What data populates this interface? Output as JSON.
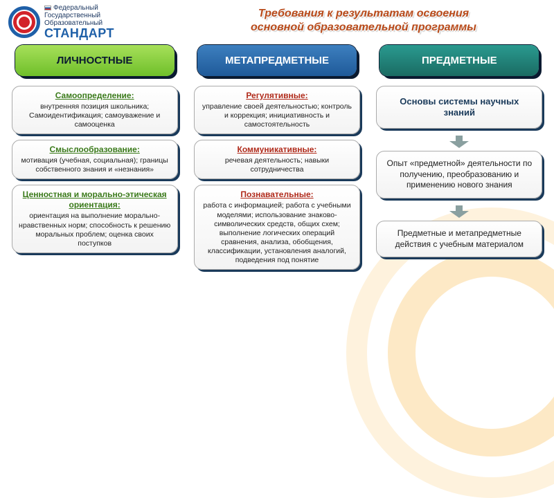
{
  "header": {
    "logo_words": [
      "Федеральный",
      "Государственный",
      "Образовательный"
    ],
    "logo_brand": "СТАНДАРТ",
    "title_line1": "Требования к результатам освоения",
    "title_line2": "основной образовательной программы"
  },
  "columns": [
    {
      "header": "ЛИЧНОСТНЫЕ",
      "header_style": "green",
      "title_color": "green",
      "cards": [
        {
          "title": "Самоопределение:",
          "body": "внутренняя позиция школьника; Самоидентификация; самоуважение и самооценка"
        },
        {
          "title": "Смыслообразование:",
          "body": "мотивация (учебная, социальная); границы собственного знания и «незнания»"
        },
        {
          "title": "Ценностная и морально-этическая ориентация:",
          "body": "ориентация на выполнение морально-нравственных норм; способность к решению моральных проблем; оценка своих поступков"
        }
      ]
    },
    {
      "header": "МЕТАПРЕДМЕТНЫЕ",
      "header_style": "blue",
      "title_color": "red",
      "cards": [
        {
          "title": "Регулятивные:",
          "body": "управление своей деятельностью; контроль и коррекция; инициативность и самостоятельность"
        },
        {
          "title": "Коммуникативные:",
          "body": "речевая деятельность; навыки сотрудничества"
        },
        {
          "title": "Познавательные:",
          "body": "работа с информацией; работа с учебными моделями; использование знаково-символических средств, общих схем; выполнение логических операций сравнения, анализа, обобщения, классификации, установления аналогий, подведения под понятие"
        }
      ]
    },
    {
      "header": "ПРЕДМЕТНЫЕ",
      "header_style": "teal",
      "flow": [
        {
          "text": "Основы системы научных знаний"
        },
        {
          "text": "Опыт «предметной» деятельности по получению, преобразованию и применению нового знания"
        },
        {
          "text": "Предметные и метапредметные действия с учебным материалом"
        }
      ]
    }
  ],
  "style": {
    "page_bg": "#ffffff",
    "accent_orange": "#f7a81b",
    "title_color": "#b84a1a",
    "shadow_navy": "#1a3a5a",
    "header_green_top": "#a7e05a",
    "header_green_bot": "#6fbf2a",
    "header_blue_top": "#3d7fbf",
    "header_blue_bot": "#1f5a99",
    "header_teal_top": "#2a9a8f",
    "header_teal_bot": "#1a6b63",
    "card_border": "#aaaaaa",
    "card_title_green": "#3a7a1a",
    "card_title_red": "#b02a1a",
    "arrow_color": "#8aa0a0",
    "logo_blue": "#1f60a8",
    "logo_red": "#d2232a",
    "title_fontsize": 16,
    "colhdr_fontsize": 15,
    "card_body_fontsize": 10.5,
    "card_title_fontsize": 12,
    "bigcard_fontsize": 13
  }
}
